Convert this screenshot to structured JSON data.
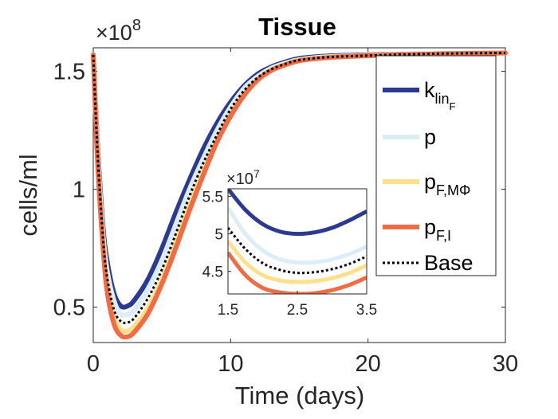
{
  "chart_data": {
    "type": "line",
    "title": "Tissue",
    "xlabel": "Time (days)",
    "ylabel": "cells/ml",
    "y_multiplier_label": "×10",
    "y_multiplier_exponent": "8",
    "xlim": [
      0,
      30
    ],
    "ylim": [
      0.35,
      1.6
    ],
    "xticks": [
      0,
      10,
      20,
      30
    ],
    "xtick_labels": [
      "0",
      "10",
      "20",
      "30"
    ],
    "yticks": [
      0.5,
      1,
      1.5
    ],
    "ytick_labels": [
      "0.5",
      "1",
      "1.5"
    ],
    "grid": false,
    "legend_position": "right",
    "series": [
      {
        "name": "k_lin_F",
        "legend_main": "k",
        "legend_sub": "lin",
        "legend_subsub": "F",
        "color": "#2b3990",
        "dash": "solid",
        "x": [
          0,
          0.3,
          0.7,
          1,
          1.5,
          2,
          2.5,
          3,
          4,
          5,
          6,
          7,
          8,
          9,
          10,
          11,
          12,
          13,
          14,
          15,
          17,
          20,
          25,
          30
        ],
        "y": [
          1.57,
          1.2,
          0.85,
          0.7,
          0.56,
          0.505,
          0.505,
          0.53,
          0.62,
          0.75,
          0.9,
          1.04,
          1.17,
          1.28,
          1.37,
          1.44,
          1.49,
          1.52,
          1.54,
          1.555,
          1.565,
          1.57,
          1.575,
          1.578
        ]
      },
      {
        "name": "p",
        "legend_main": "p",
        "legend_sub": "",
        "legend_subsub": "",
        "color": "#dbeef7",
        "dash": "solid",
        "x": [
          0,
          0.3,
          0.7,
          1,
          1.5,
          2,
          2.5,
          3,
          4,
          5,
          6,
          7,
          8,
          9,
          10,
          11,
          12,
          13,
          14,
          15,
          17,
          20,
          25,
          30
        ],
        "y": [
          1.57,
          1.18,
          0.82,
          0.66,
          0.53,
          0.47,
          0.47,
          0.49,
          0.58,
          0.7,
          0.85,
          1.0,
          1.13,
          1.25,
          1.35,
          1.43,
          1.48,
          1.515,
          1.535,
          1.55,
          1.562,
          1.568,
          1.575,
          1.578
        ]
      },
      {
        "name": "p_F,MΦ",
        "legend_main": "p",
        "legend_sub": "F,MΦ",
        "legend_subsub": "",
        "color": "#ffe08a",
        "dash": "solid",
        "x": [
          0,
          0.3,
          0.7,
          1,
          1.5,
          2,
          2.5,
          3,
          4,
          5,
          6,
          7,
          8,
          9,
          10,
          11,
          12,
          13,
          14,
          15,
          17,
          20,
          25,
          30
        ],
        "y": [
          1.57,
          1.15,
          0.78,
          0.6,
          0.46,
          0.405,
          0.4,
          0.42,
          0.5,
          0.62,
          0.77,
          0.93,
          1.08,
          1.21,
          1.32,
          1.41,
          1.47,
          1.51,
          1.53,
          1.548,
          1.56,
          1.568,
          1.575,
          1.578
        ]
      },
      {
        "name": "p_F,I",
        "legend_main": "p",
        "legend_sub": "F,I",
        "legend_subsub": "",
        "color": "#f26b45",
        "dash": "solid",
        "x": [
          0,
          0.3,
          0.7,
          1,
          1.5,
          2,
          2.5,
          3,
          4,
          5,
          6,
          7,
          8,
          9,
          10,
          11,
          12,
          13,
          14,
          15,
          17,
          20,
          25,
          30
        ],
        "y": [
          1.57,
          1.13,
          0.76,
          0.57,
          0.43,
          0.38,
          0.375,
          0.395,
          0.475,
          0.6,
          0.75,
          0.91,
          1.06,
          1.2,
          1.31,
          1.4,
          1.465,
          1.505,
          1.528,
          1.545,
          1.558,
          1.566,
          1.574,
          1.578
        ]
      },
      {
        "name": "Base",
        "legend_main": "Base",
        "legend_sub": "",
        "legend_subsub": "",
        "color": "#000000",
        "dash": "dotted",
        "x": [
          0,
          0.3,
          0.7,
          1,
          1.5,
          2,
          2.5,
          3,
          4,
          5,
          6,
          7,
          8,
          9,
          10,
          11,
          12,
          13,
          14,
          15,
          17,
          20,
          25,
          30
        ],
        "y": [
          1.57,
          1.17,
          0.8,
          0.63,
          0.49,
          0.44,
          0.435,
          0.455,
          0.54,
          0.66,
          0.81,
          0.97,
          1.11,
          1.23,
          1.34,
          1.42,
          1.475,
          1.51,
          1.532,
          1.548,
          1.56,
          1.567,
          1.575,
          1.578
        ]
      }
    ],
    "inset": {
      "xlim": [
        1.5,
        3.5
      ],
      "ylim": [
        4.2,
        5.6
      ],
      "y_multiplier_label": "×10",
      "y_multiplier_exponent": "7",
      "xticks": [
        1.5,
        2.5,
        3.5
      ],
      "xtick_labels": [
        "1.5",
        "2.5",
        "3.5"
      ],
      "yticks": [
        4.5,
        5,
        5.5
      ],
      "ytick_labels": [
        "4.5",
        "5",
        "5.5"
      ],
      "series": [
        {
          "name": "k_lin_F",
          "color": "#2b3990",
          "dash": "solid",
          "x": [
            1.5,
            1.75,
            2,
            2.25,
            2.5,
            2.75,
            3,
            3.25,
            3.5
          ],
          "y": [
            5.6,
            5.32,
            5.13,
            5.03,
            5.0,
            5.02,
            5.08,
            5.18,
            5.3
          ]
        },
        {
          "name": "p",
          "color": "#dbeef7",
          "dash": "solid",
          "x": [
            1.5,
            1.75,
            2,
            2.25,
            2.5,
            2.75,
            3,
            3.25,
            3.5
          ],
          "y": [
            5.35,
            5.0,
            4.78,
            4.66,
            4.62,
            4.62,
            4.66,
            4.73,
            4.83
          ]
        },
        {
          "name": "p_F,MΦ",
          "color": "#ffe08a",
          "dash": "solid",
          "x": [
            1.5,
            1.75,
            2,
            2.25,
            2.5,
            2.75,
            3,
            3.25,
            3.5
          ],
          "y": [
            4.9,
            4.62,
            4.45,
            4.38,
            4.36,
            4.37,
            4.41,
            4.48,
            4.58
          ]
        },
        {
          "name": "p_F,I",
          "color": "#f26b45",
          "dash": "solid",
          "x": [
            1.5,
            1.75,
            2,
            2.25,
            2.5,
            2.75,
            3,
            3.25,
            3.5
          ],
          "y": [
            4.75,
            4.45,
            4.28,
            4.22,
            4.2,
            4.21,
            4.25,
            4.32,
            4.42
          ]
        },
        {
          "name": "Base",
          "color": "#000000",
          "dash": "dotted",
          "x": [
            1.5,
            1.75,
            2,
            2.25,
            2.5,
            2.75,
            3,
            3.25,
            3.5
          ],
          "y": [
            5.08,
            4.8,
            4.61,
            4.52,
            4.48,
            4.49,
            4.53,
            4.6,
            4.7
          ]
        }
      ]
    }
  }
}
